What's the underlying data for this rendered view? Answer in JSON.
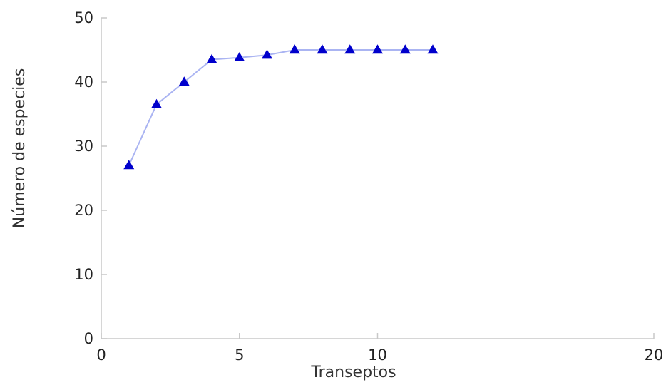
{
  "chart_data": {
    "type": "line",
    "title": "",
    "xlabel": "Transeptos",
    "ylabel": "Número de especies",
    "xlim": [
      0,
      20
    ],
    "ylim": [
      0,
      50
    ],
    "x_ticks": [
      0,
      5,
      10,
      20
    ],
    "y_ticks": [
      0,
      10,
      20,
      30,
      40,
      50
    ],
    "grid": false,
    "legend": "none",
    "series": [
      {
        "marker": "triangle",
        "color": "#0000cc",
        "line_color": "#aab4f2",
        "x": [
          1,
          2,
          3,
          4,
          5,
          6,
          7,
          8,
          9,
          10,
          11,
          12
        ],
        "y": [
          27,
          36.5,
          40,
          43.5,
          43.8,
          44.2,
          45,
          45,
          45,
          45,
          45,
          45
        ]
      }
    ]
  }
}
